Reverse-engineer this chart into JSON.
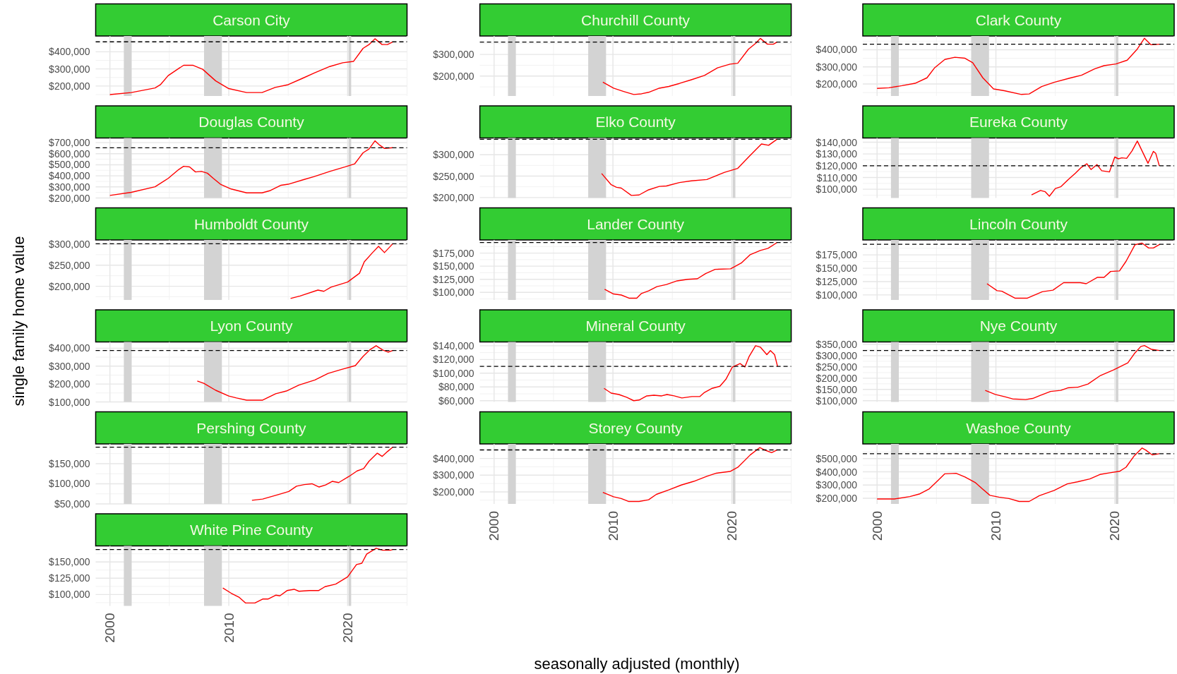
{
  "chart_data": [
    {
      "type": "line",
      "title": "Carson City",
      "x": [
        2000,
        2001.8,
        2003.8,
        2004.25,
        2004.9,
        2005.8,
        2006.2,
        2007,
        2007.8,
        2008.9,
        2010,
        2011.5,
        2012.8,
        2013.9,
        2015,
        2016.2,
        2017.2,
        2018.5,
        2019.6,
        2020.5,
        2021.3,
        2021.8,
        2022.3,
        2022.9,
        2023.35,
        2023.8
      ],
      "values": [
        150000,
        162000,
        189000,
        208000,
        261000,
        303000,
        321000,
        321000,
        298000,
        230000,
        185000,
        162000,
        162000,
        192000,
        208000,
        245000,
        276000,
        314000,
        336000,
        344000,
        420000,
        442000,
        476000,
        442000,
        442000,
        458000
      ],
      "color": "#ff0000",
      "xlim": [
        1998.8,
        2025
      ],
      "xticks": [
        2000,
        2010,
        2020
      ],
      "ylim": [
        142000,
        492000
      ],
      "yticks": [
        {
          "value": 200000,
          "label": "$200,000"
        },
        {
          "value": 300000,
          "label": "$300,000"
        },
        {
          "value": 400000,
          "label": "$400,000"
        }
      ],
      "ref_lines": [
        {
          "axis": "y",
          "value": 458000,
          "color": "#000000",
          "line_style": "dashed"
        }
      ],
      "bands": [
        {
          "axis": "x",
          "from": 2001.17,
          "to": 2001.83,
          "color": "#d3d3d3"
        },
        {
          "axis": "x",
          "from": 2007.92,
          "to": 2009.42,
          "color": "#d3d3d3"
        },
        {
          "axis": "x",
          "from": 2020.08,
          "to": 2020.3,
          "color": "#d3d3d3"
        }
      ],
      "grid": true,
      "tick_labels": "y"
    },
    {
      "type": "line",
      "title": "Churchill County",
      "x": [
        2009.15,
        2010.05,
        2010.9,
        2011.75,
        2012.4,
        2013,
        2013.9,
        2014.7,
        2015.6,
        2016.6,
        2017.7,
        2018.8,
        2019.85,
        2020.5,
        2021.4,
        2022,
        2022.4,
        2023,
        2023.5,
        2023.8
      ],
      "values": [
        172000,
        144000,
        129000,
        115000,
        118000,
        125000,
        144000,
        152000,
        166000,
        183000,
        203000,
        238000,
        255000,
        259000,
        324000,
        351000,
        374000,
        347000,
        347000,
        357000
      ],
      "color": "#ff0000",
      "xlim": [
        1998.8,
        2025
      ],
      "xticks": [
        2000,
        2010,
        2020
      ],
      "ylim": [
        108000,
        385000
      ],
      "yticks": [
        {
          "value": 200000,
          "label": "$200,000"
        },
        {
          "value": 300000,
          "label": "$300,000"
        }
      ],
      "ref_lines": [
        {
          "axis": "y",
          "value": 357000,
          "color": "#000000",
          "line_style": "dashed"
        }
      ],
      "bands": [
        {
          "axis": "x",
          "from": 2001.17,
          "to": 2001.83,
          "color": "#d3d3d3"
        },
        {
          "axis": "x",
          "from": 2007.92,
          "to": 2009.42,
          "color": "#d3d3d3"
        },
        {
          "axis": "x",
          "from": 2020.08,
          "to": 2020.3,
          "color": "#d3d3d3"
        }
      ],
      "grid": true,
      "tick_labels": "y"
    },
    {
      "type": "line",
      "title": "Clark County",
      "x": [
        2000,
        2001,
        2002.1,
        2003.2,
        2004.2,
        2004.85,
        2005.7,
        2006.55,
        2007.4,
        2008.05,
        2008.9,
        2009.8,
        2010.7,
        2012.15,
        2012.8,
        2013.85,
        2014.9,
        2016.2,
        2017.2,
        2018.3,
        2019.1,
        2020.1,
        2021.05,
        2021.9,
        2022.5,
        2023.05,
        2023.8
      ],
      "values": [
        174000,
        178000,
        190000,
        204000,
        236000,
        295000,
        343000,
        356000,
        350000,
        324000,
        236000,
        171000,
        161000,
        139000,
        142000,
        185000,
        210000,
        234000,
        251000,
        288000,
        307000,
        317000,
        339000,
        404000,
        467000,
        429000,
        432000
      ],
      "color": "#ff0000",
      "xlim": [
        1998.8,
        2025
      ],
      "xticks": [
        2000,
        2010,
        2020
      ],
      "ylim": [
        130000,
        480000
      ],
      "yticks": [
        {
          "value": 200000,
          "label": "$200,000"
        },
        {
          "value": 300000,
          "label": "$300,000"
        },
        {
          "value": 400000,
          "label": "$400,000"
        }
      ],
      "ref_lines": [
        {
          "axis": "y",
          "value": 432000,
          "color": "#000000",
          "line_style": "dashed"
        }
      ],
      "bands": [
        {
          "axis": "x",
          "from": 2001.17,
          "to": 2001.83,
          "color": "#d3d3d3"
        },
        {
          "axis": "x",
          "from": 2007.92,
          "to": 2009.42,
          "color": "#d3d3d3"
        },
        {
          "axis": "x",
          "from": 2020.08,
          "to": 2020.3,
          "color": "#d3d3d3"
        }
      ],
      "grid": true,
      "tick_labels": "y"
    },
    {
      "type": "line",
      "title": "Douglas County",
      "x": [
        2000,
        2001.8,
        2003.8,
        2004.9,
        2005.8,
        2006.2,
        2006.7,
        2007.2,
        2007.7,
        2008.2,
        2008.7,
        2009.3,
        2010.2,
        2011.5,
        2012.8,
        2013.5,
        2014.4,
        2015,
        2016.3,
        2017.2,
        2018.5,
        2019.8,
        2020.6,
        2021.3,
        2021.8,
        2022.3,
        2022.7,
        2023.1,
        2023.8
      ],
      "values": [
        223000,
        251000,
        301000,
        377000,
        458000,
        486000,
        481000,
        435000,
        440000,
        424000,
        377000,
        324000,
        281000,
        246000,
        246000,
        267000,
        315000,
        324000,
        366000,
        394000,
        440000,
        481000,
        509000,
        608000,
        642000,
        716000,
        677000,
        647000,
        654000
      ],
      "color": "#ff0000",
      "xlim": [
        1998.8,
        2025
      ],
      "xticks": [
        2000,
        2010,
        2020
      ],
      "ylim": [
        200000,
        742000
      ],
      "yticks": [
        {
          "value": 200000,
          "label": "$200,000"
        },
        {
          "value": 300000,
          "label": "$300,000"
        },
        {
          "value": 400000,
          "label": "$400,000"
        },
        {
          "value": 500000,
          "label": "$500,000"
        },
        {
          "value": 600000,
          "label": "$600,000"
        },
        {
          "value": 700000,
          "label": "$700,000"
        }
      ],
      "ref_lines": [
        {
          "axis": "y",
          "value": 654000,
          "color": "#000000",
          "line_style": "dashed"
        }
      ],
      "bands": [
        {
          "axis": "x",
          "from": 2001.17,
          "to": 2001.83,
          "color": "#d3d3d3"
        },
        {
          "axis": "x",
          "from": 2007.92,
          "to": 2009.42,
          "color": "#d3d3d3"
        },
        {
          "axis": "x",
          "from": 2020.08,
          "to": 2020.3,
          "color": "#d3d3d3"
        }
      ],
      "grid": true,
      "tick_labels": "y"
    },
    {
      "type": "line",
      "title": "Elko County",
      "x": [
        2009.05,
        2009.85,
        2010.3,
        2010.7,
        2011.55,
        2012.2,
        2013,
        2013.9,
        2014.5,
        2015.6,
        2016.6,
        2017.9,
        2019.4,
        2020.5,
        2021.5,
        2022.5,
        2023.1,
        2023.8
      ],
      "values": [
        256000,
        230000,
        224000,
        222000,
        205000,
        206000,
        218000,
        226000,
        227000,
        235000,
        239000,
        242000,
        259000,
        268000,
        297000,
        325000,
        322000,
        336000
      ],
      "color": "#ff0000",
      "xlim": [
        1998.8,
        2025
      ],
      "xticks": [
        2000,
        2010,
        2020
      ],
      "ylim": [
        199000,
        339000
      ],
      "yticks": [
        {
          "value": 200000,
          "label": "$200,000"
        },
        {
          "value": 250000,
          "label": "$250,000"
        },
        {
          "value": 300000,
          "label": "$300,000"
        }
      ],
      "ref_lines": [
        {
          "axis": "y",
          "value": 336000,
          "color": "#000000",
          "line_style": "dashed"
        }
      ],
      "bands": [
        {
          "axis": "x",
          "from": 2001.17,
          "to": 2001.83,
          "color": "#d3d3d3"
        },
        {
          "axis": "x",
          "from": 2007.92,
          "to": 2009.42,
          "color": "#d3d3d3"
        },
        {
          "axis": "x",
          "from": 2020.08,
          "to": 2020.3,
          "color": "#d3d3d3"
        }
      ],
      "grid": true,
      "tick_labels": "y"
    },
    {
      "type": "line",
      "title": "Eureka County",
      "x": [
        2013,
        2013.75,
        2014.15,
        2014.5,
        2015,
        2015.45,
        2016.1,
        2016.7,
        2017.15,
        2017.65,
        2018,
        2018.5,
        2018.9,
        2019.55,
        2020,
        2020.3,
        2020.6,
        2021,
        2021.45,
        2021.9,
        2022.4,
        2022.8,
        2023.25,
        2023.45,
        2023.75
      ],
      "values": [
        95200,
        99000,
        97900,
        94100,
        100600,
        102100,
        108400,
        113700,
        118300,
        121700,
        116800,
        121000,
        115800,
        114700,
        127400,
        125900,
        126700,
        126300,
        132600,
        141000,
        130500,
        122100,
        132200,
        130500,
        120000
      ],
      "color": "#ff0000",
      "xlim": [
        1998.8,
        2025
      ],
      "xticks": [
        2000,
        2010,
        2020
      ],
      "ylim": [
        92600,
        143600
      ],
      "yticks": [
        {
          "value": 100000,
          "label": "$100,000"
        },
        {
          "value": 110000,
          "label": "$110,000"
        },
        {
          "value": 120000,
          "label": "$120,000"
        },
        {
          "value": 130000,
          "label": "$130,000"
        },
        {
          "value": 140000,
          "label": "$140,000"
        }
      ],
      "ref_lines": [
        {
          "axis": "y",
          "value": 120000,
          "color": "#000000",
          "line_style": "dashed"
        }
      ],
      "bands": [
        {
          "axis": "x",
          "from": 2001.17,
          "to": 2001.83,
          "color": "#d3d3d3"
        },
        {
          "axis": "x",
          "from": 2007.92,
          "to": 2009.42,
          "color": "#d3d3d3"
        },
        {
          "axis": "x",
          "from": 2020.08,
          "to": 2020.3,
          "color": "#d3d3d3"
        }
      ],
      "grid": true,
      "tick_labels": "y"
    },
    {
      "type": "line",
      "title": "Humboldt County",
      "x": [
        2015.2,
        2016,
        2017.5,
        2018,
        2018.6,
        2020,
        2021,
        2021.4,
        2022.1,
        2022.6,
        2023.1,
        2023.8
      ],
      "values": [
        171000,
        177000,
        191000,
        188000,
        198000,
        210000,
        231000,
        258000,
        280000,
        295000,
        280000,
        301000
      ],
      "color": "#ff0000",
      "xlim": [
        1998.8,
        2025
      ],
      "xticks": [
        2000,
        2010,
        2020
      ],
      "ylim": [
        167500,
        310000
      ],
      "yticks": [
        {
          "value": 200000,
          "label": "$200,000"
        },
        {
          "value": 250000,
          "label": "$250,000"
        },
        {
          "value": 300000,
          "label": "$300,000"
        }
      ],
      "ref_lines": [
        {
          "axis": "y",
          "value": 301000,
          "color": "#000000",
          "line_style": "dashed"
        }
      ],
      "bands": [
        {
          "axis": "x",
          "from": 2001.17,
          "to": 2001.83,
          "color": "#d3d3d3"
        },
        {
          "axis": "x",
          "from": 2007.92,
          "to": 2009.42,
          "color": "#d3d3d3"
        },
        {
          "axis": "x",
          "from": 2020.08,
          "to": 2020.3,
          "color": "#d3d3d3"
        }
      ],
      "grid": true,
      "tick_labels": "y"
    },
    {
      "type": "line",
      "title": "Lander County",
      "x": [
        2009.3,
        2010.05,
        2010.7,
        2011.35,
        2012,
        2012.4,
        2013,
        2013.7,
        2014.5,
        2015.4,
        2016.3,
        2017.1,
        2017.8,
        2018.6,
        2019.9,
        2020.8,
        2021.55,
        2022.4,
        2023.05,
        2023.8
      ],
      "values": [
        106000,
        97000,
        95000,
        89000,
        89000,
        98000,
        103000,
        111000,
        115000,
        122000,
        125000,
        126000,
        136000,
        144000,
        145000,
        156000,
        172000,
        180000,
        184000,
        195000
      ],
      "color": "#ff0000",
      "xlim": [
        1998.8,
        2025
      ],
      "xticks": [
        2000,
        2010,
        2020
      ],
      "ylim": [
        85600,
        200000
      ],
      "yticks": [
        {
          "value": 100000,
          "label": "$100,000"
        },
        {
          "value": 125000,
          "label": "$125,000"
        },
        {
          "value": 150000,
          "label": "$150,000"
        },
        {
          "value": 175000,
          "label": "$175,000"
        }
      ],
      "ref_lines": [
        {
          "axis": "y",
          "value": 195000,
          "color": "#000000",
          "line_style": "dashed"
        }
      ],
      "bands": [
        {
          "axis": "x",
          "from": 2001.17,
          "to": 2001.83,
          "color": "#d3d3d3"
        },
        {
          "axis": "x",
          "from": 2007.92,
          "to": 2009.42,
          "color": "#d3d3d3"
        },
        {
          "axis": "x",
          "from": 2020.08,
          "to": 2020.3,
          "color": "#d3d3d3"
        }
      ],
      "grid": true,
      "tick_labels": "y"
    },
    {
      "type": "line",
      "title": "Lincoln County",
      "x": [
        2009.25,
        2010.1,
        2010.5,
        2011.6,
        2012.65,
        2013.9,
        2014.8,
        2015.7,
        2017.1,
        2017.6,
        2018.55,
        2019.1,
        2019.65,
        2020.4,
        2020.95,
        2021.7,
        2022.3,
        2022.85,
        2023.25,
        2023.8
      ],
      "values": [
        121000,
        108000,
        107000,
        94000,
        94000,
        106000,
        109000,
        123000,
        123000,
        121000,
        133000,
        133000,
        144000,
        145000,
        163000,
        194000,
        197000,
        188000,
        188000,
        195000
      ],
      "color": "#ff0000",
      "xlim": [
        1998.8,
        2025
      ],
      "xticks": [
        2000,
        2010,
        2020
      ],
      "ylim": [
        90600,
        203000
      ],
      "yticks": [
        {
          "value": 100000,
          "label": "$100,000"
        },
        {
          "value": 125000,
          "label": "$125,000"
        },
        {
          "value": 150000,
          "label": "$150,000"
        },
        {
          "value": 175000,
          "label": "$175,000"
        }
      ],
      "ref_lines": [
        {
          "axis": "y",
          "value": 195000,
          "color": "#000000",
          "line_style": "dashed"
        }
      ],
      "bands": [
        {
          "axis": "x",
          "from": 2001.17,
          "to": 2001.83,
          "color": "#d3d3d3"
        },
        {
          "axis": "x",
          "from": 2007.92,
          "to": 2009.42,
          "color": "#d3d3d3"
        },
        {
          "axis": "x",
          "from": 2020.08,
          "to": 2020.3,
          "color": "#d3d3d3"
        }
      ],
      "grid": true,
      "tick_labels": "y"
    },
    {
      "type": "line",
      "title": "Lyon County",
      "ylabel": "single family home value",
      "x": [
        2007.35,
        2007.9,
        2008.9,
        2010,
        2010.65,
        2011.5,
        2012.85,
        2013.95,
        2014.85,
        2015.9,
        2017.25,
        2018.35,
        2019.45,
        2020.65,
        2021.3,
        2021.85,
        2022.4,
        2022.95,
        2023.4,
        2023.8
      ],
      "values": [
        217000,
        204000,
        165000,
        133000,
        122000,
        110000,
        110000,
        146000,
        161000,
        194000,
        223000,
        259000,
        281000,
        303000,
        354000,
        390000,
        414000,
        390000,
        378000,
        387000
      ],
      "color": "#ff0000",
      "xlim": [
        1998.8,
        2025
      ],
      "xticks": [
        2000,
        2010,
        2020
      ],
      "ylim": [
        100000,
        435000
      ],
      "yticks": [
        {
          "value": 100000,
          "label": "$100,000"
        },
        {
          "value": 200000,
          "label": "$200,000"
        },
        {
          "value": 300000,
          "label": "$300,000"
        },
        {
          "value": 400000,
          "label": "$400,000"
        }
      ],
      "ref_lines": [
        {
          "axis": "y",
          "value": 387000,
          "color": "#000000",
          "line_style": "dashed"
        }
      ],
      "bands": [
        {
          "axis": "x",
          "from": 2001.17,
          "to": 2001.83,
          "color": "#d3d3d3"
        },
        {
          "axis": "x",
          "from": 2007.92,
          "to": 2009.42,
          "color": "#d3d3d3"
        },
        {
          "axis": "x",
          "from": 2020.08,
          "to": 2020.3,
          "color": "#d3d3d3"
        }
      ],
      "grid": true,
      "tick_labels": "y"
    },
    {
      "type": "line",
      "title": "Mineral County",
      "x": [
        2009.25,
        2009.85,
        2010.5,
        2011.15,
        2011.75,
        2012.2,
        2012.85,
        2013.45,
        2014.1,
        2014.55,
        2015.15,
        2015.8,
        2016.65,
        2017.3,
        2017.7,
        2018.35,
        2019,
        2019.5,
        2020.05,
        2020.7,
        2021.1,
        2021.45,
        2022,
        2022.4,
        2022.95,
        2023.25,
        2023.6,
        2023.85
      ],
      "values": [
        78000,
        71000,
        69000,
        65000,
        60000,
        61000,
        67000,
        68000,
        67000,
        69000,
        67000,
        64000,
        66000,
        66000,
        72000,
        78000,
        81000,
        91000,
        109000,
        114000,
        109000,
        124000,
        140000,
        138000,
        127000,
        133000,
        127000,
        110000
      ],
      "color": "#ff0000",
      "xlim": [
        1998.8,
        2025
      ],
      "xticks": [
        2000,
        2010,
        2020
      ],
      "ylim": [
        58200,
        145500
      ],
      "yticks": [
        {
          "value": 60000,
          "label": "$60,000"
        },
        {
          "value": 80000,
          "label": "$80,000"
        },
        {
          "value": 100000,
          "label": "$100,000"
        },
        {
          "value": 120000,
          "label": "$120,000"
        },
        {
          "value": 140000,
          "label": "$140,000"
        }
      ],
      "ref_lines": [
        {
          "axis": "y",
          "value": 110000,
          "color": "#000000",
          "line_style": "dashed"
        }
      ],
      "bands": [
        {
          "axis": "x",
          "from": 2001.17,
          "to": 2001.83,
          "color": "#d3d3d3"
        },
        {
          "axis": "x",
          "from": 2007.92,
          "to": 2009.42,
          "color": "#d3d3d3"
        },
        {
          "axis": "x",
          "from": 2020.08,
          "to": 2020.3,
          "color": "#d3d3d3"
        }
      ],
      "grid": true,
      "tick_labels": "y"
    },
    {
      "type": "line",
      "title": "Nye County",
      "x": [
        2009.1,
        2009.95,
        2010.8,
        2011.4,
        2012.5,
        2013.1,
        2013.75,
        2014.6,
        2015.45,
        2016.05,
        2016.9,
        2017.75,
        2018.8,
        2019.9,
        2021.1,
        2021.65,
        2022.2,
        2022.5,
        2023.1,
        2023.75
      ],
      "values": [
        146000,
        128000,
        117000,
        108000,
        105000,
        110000,
        124000,
        141000,
        146000,
        157000,
        160000,
        174000,
        212000,
        237000,
        268000,
        309000,
        341000,
        345000,
        328000,
        323000
      ],
      "color": "#ff0000",
      "xlim": [
        1998.8,
        2025
      ],
      "xticks": [
        2000,
        2010,
        2020
      ],
      "ylim": [
        94500,
        361000
      ],
      "yticks": [
        {
          "value": 100000,
          "label": "$100,000"
        },
        {
          "value": 150000,
          "label": "$150,000"
        },
        {
          "value": 200000,
          "label": "$200,000"
        },
        {
          "value": 250000,
          "label": "$250,000"
        },
        {
          "value": 300000,
          "label": "$300,000"
        },
        {
          "value": 350000,
          "label": "$350,000"
        }
      ],
      "ref_lines": [
        {
          "axis": "y",
          "value": 323000,
          "color": "#000000",
          "line_style": "dashed"
        }
      ],
      "bands": [
        {
          "axis": "x",
          "from": 2001.17,
          "to": 2001.83,
          "color": "#d3d3d3"
        },
        {
          "axis": "x",
          "from": 2007.92,
          "to": 2009.42,
          "color": "#d3d3d3"
        },
        {
          "axis": "x",
          "from": 2020.08,
          "to": 2020.3,
          "color": "#d3d3d3"
        }
      ],
      "grid": true,
      "tick_labels": "y"
    },
    {
      "type": "line",
      "title": "Pershing County",
      "x": [
        2011.95,
        2012.85,
        2014.15,
        2015.05,
        2015.7,
        2016.35,
        2017,
        2017.6,
        2018.15,
        2018.7,
        2019.25,
        2020.1,
        2020.8,
        2021.35,
        2021.8,
        2022.5,
        2022.9,
        2023.35,
        2023.8
      ],
      "values": [
        59000,
        62000,
        73000,
        81000,
        94000,
        98000,
        100000,
        92000,
        97000,
        106000,
        103000,
        118000,
        132000,
        138000,
        156000,
        176000,
        168000,
        180000,
        191000
      ],
      "color": "#ff0000",
      "xlim": [
        1998.8,
        2025
      ],
      "xticks": [
        2000,
        2010,
        2020
      ],
      "ylim": [
        50000,
        199000
      ],
      "yticks": [
        {
          "value": 50000,
          "label": "$50,000"
        },
        {
          "value": 100000,
          "label": "$100,000"
        },
        {
          "value": 150000,
          "label": "$150,000"
        }
      ],
      "ref_lines": [
        {
          "axis": "y",
          "value": 191000,
          "color": "#000000",
          "line_style": "dashed"
        }
      ],
      "bands": [
        {
          "axis": "x",
          "from": 2001.17,
          "to": 2001.83,
          "color": "#d3d3d3"
        },
        {
          "axis": "x",
          "from": 2007.92,
          "to": 2009.42,
          "color": "#d3d3d3"
        },
        {
          "axis": "x",
          "from": 2020.08,
          "to": 2020.3,
          "color": "#d3d3d3"
        }
      ],
      "grid": true,
      "tick_labels": "y"
    },
    {
      "type": "line",
      "title": "Storey County",
      "xlabel": "seasonally adjusted (monthly)",
      "x": [
        2009.15,
        2010.05,
        2010.7,
        2011.3,
        2012.2,
        2013,
        2013.65,
        2014.7,
        2015.75,
        2016.8,
        2017.9,
        2018.7,
        2019.85,
        2020.5,
        2021.55,
        2022.35,
        2022.8,
        2023.35,
        2023.8
      ],
      "values": [
        197000,
        171000,
        160000,
        143000,
        143000,
        153000,
        185000,
        212000,
        241000,
        263000,
        293000,
        312000,
        322000,
        347000,
        421000,
        465000,
        450000,
        435000,
        451000
      ],
      "color": "#ff0000",
      "xlim": [
        1998.8,
        2025
      ],
      "xticks": [
        2000,
        2010,
        2020
      ],
      "ylim": [
        128000,
        487000
      ],
      "yticks": [
        {
          "value": 200000,
          "label": "$200,000"
        },
        {
          "value": 300000,
          "label": "$300,000"
        },
        {
          "value": 400000,
          "label": "$400,000"
        }
      ],
      "ref_lines": [
        {
          "axis": "y",
          "value": 451000,
          "color": "#000000",
          "line_style": "dashed"
        }
      ],
      "bands": [
        {
          "axis": "x",
          "from": 2001.17,
          "to": 2001.83,
          "color": "#d3d3d3"
        },
        {
          "axis": "x",
          "from": 2007.92,
          "to": 2009.42,
          "color": "#d3d3d3"
        },
        {
          "axis": "x",
          "from": 2020.08,
          "to": 2020.3,
          "color": "#d3d3d3"
        }
      ],
      "grid": true
    },
    {
      "type": "line",
      "title": "Washoe County",
      "x": [
        2000,
        2001.45,
        2002.75,
        2003.55,
        2004.4,
        2005.05,
        2005.7,
        2006.65,
        2007.4,
        2008.25,
        2008.85,
        2009.5,
        2010.25,
        2011.1,
        2011.95,
        2012.8,
        2013.65,
        2014.9,
        2016,
        2016.85,
        2017.9,
        2018.75,
        2019.6,
        2020.4,
        2020.95,
        2021.65,
        2022.3,
        2022.6,
        2023.15,
        2023.75
      ],
      "values": [
        195000,
        195000,
        213000,
        232000,
        272000,
        328000,
        385000,
        389000,
        361000,
        320000,
        272000,
        222000,
        209000,
        198000,
        176000,
        176000,
        219000,
        259000,
        309000,
        324000,
        346000,
        380000,
        393000,
        404000,
        435000,
        522000,
        580000,
        565000,
        528000,
        537000
      ],
      "color": "#ff0000",
      "xlim": [
        1998.8,
        2025
      ],
      "xticks": [
        2000,
        2010,
        2020
      ],
      "ylim": [
        157400,
        611000
      ],
      "yticks": [
        {
          "value": 200000,
          "label": "$200,000"
        },
        {
          "value": 300000,
          "label": "$300,000"
        },
        {
          "value": 400000,
          "label": "$400,000"
        },
        {
          "value": 500000,
          "label": "$500,000"
        }
      ],
      "ref_lines": [
        {
          "axis": "y",
          "value": 537000,
          "color": "#000000",
          "line_style": "dashed"
        }
      ],
      "bands": [
        {
          "axis": "x",
          "from": 2001.17,
          "to": 2001.83,
          "color": "#d3d3d3"
        },
        {
          "axis": "x",
          "from": 2007.92,
          "to": 2009.42,
          "color": "#d3d3d3"
        },
        {
          "axis": "x",
          "from": 2020.08,
          "to": 2020.3,
          "color": "#d3d3d3"
        }
      ],
      "grid": true
    },
    {
      "type": "line",
      "title": "White Pine County",
      "x": [
        2009.5,
        2010.2,
        2010.85,
        2011.4,
        2012.2,
        2012.85,
        2013.3,
        2013.95,
        2014.3,
        2014.9,
        2015.5,
        2015.9,
        2016.8,
        2017.55,
        2018.1,
        2019,
        2020,
        2020.75,
        2021.2,
        2021.6,
        2022.4,
        2022.95,
        2023.6,
        2023.8
      ],
      "values": [
        110000,
        102000,
        96000,
        87000,
        87000,
        93000,
        93000,
        99000,
        98000,
        106000,
        108000,
        105000,
        106000,
        106000,
        112000,
        116000,
        127000,
        146000,
        148000,
        162000,
        171000,
        168000,
        168000,
        169000
      ],
      "color": "#ff0000",
      "xlim": [
        1998.8,
        2025
      ],
      "xticks": [
        2000,
        2010,
        2020
      ],
      "ylim": [
        82500,
        174600
      ],
      "yticks": [
        {
          "value": 100000,
          "label": "$100,000"
        },
        {
          "value": 125000,
          "label": "$125,000"
        },
        {
          "value": 150000,
          "label": "$150,000"
        }
      ],
      "ref_lines": [
        {
          "axis": "y",
          "value": 169000,
          "color": "#000000",
          "line_style": "dashed"
        }
      ],
      "bands": [
        {
          "axis": "x",
          "from": 2001.17,
          "to": 2001.83,
          "color": "#d3d3d3"
        },
        {
          "axis": "x",
          "from": 2007.92,
          "to": 2009.42,
          "color": "#d3d3d3"
        },
        {
          "axis": "x",
          "from": 2020.08,
          "to": 2020.3,
          "color": "#d3d3d3"
        }
      ],
      "grid": true
    }
  ]
}
